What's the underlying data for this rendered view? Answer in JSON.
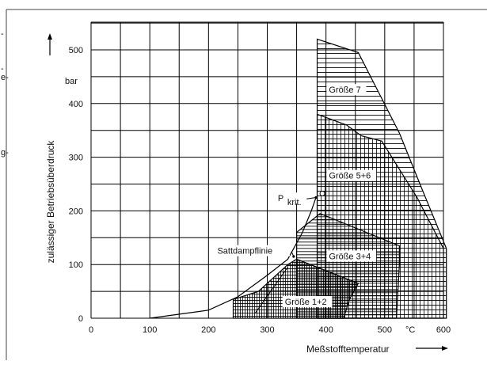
{
  "fragments": [
    "-",
    "-",
    "e-",
    "g-"
  ],
  "chart_data": {
    "type": "area",
    "xlabel": "Meßstofftemperatur",
    "ylabel": "zulässiger Betriebsüberdruck",
    "x_unit_label": "°C",
    "y_unit_label": "bar",
    "xlim": [
      0,
      610
    ],
    "ylim": [
      -10,
      540
    ],
    "x_ticks": [
      0,
      100,
      200,
      300,
      400,
      500,
      600
    ],
    "x_tick_labels": [
      "0",
      "100",
      "200",
      "300",
      "400",
      "500",
      "600"
    ],
    "y_ticks": [
      0,
      100,
      200,
      300,
      400,
      500
    ],
    "y_tick_labels": [
      "0",
      "100",
      "200",
      "300",
      "400",
      "500"
    ],
    "grid": true,
    "regions": [
      {
        "name": "Größe 1+2",
        "label_at": [
          330,
          25
        ],
        "polygon": [
          [
            242,
            0
          ],
          [
            242,
            35
          ],
          [
            285,
            50
          ],
          [
            335,
            100
          ],
          [
            350,
            110
          ],
          [
            455,
            65
          ],
          [
            440,
            35
          ],
          [
            430,
            0
          ]
        ]
      },
      {
        "name": "Größe 3+4",
        "label_at": [
          405,
          110
        ],
        "polygon": [
          [
            350,
            0
          ],
          [
            350,
            160
          ],
          [
            390,
            195
          ],
          [
            525,
            135
          ],
          [
            525,
            100
          ],
          [
            520,
            0
          ]
        ]
      },
      {
        "name": "Größe 5+6",
        "label_at": [
          405,
          260
        ],
        "polygon": [
          [
            385,
            0
          ],
          [
            385,
            380
          ],
          [
            435,
            360
          ],
          [
            460,
            340
          ],
          [
            495,
            330
          ],
          [
            555,
            225
          ],
          [
            600,
            130
          ],
          [
            600,
            0
          ]
        ]
      },
      {
        "name": "Größe 7",
        "label_at": [
          405,
          420
        ],
        "polygon": [
          [
            385,
            0
          ],
          [
            385,
            520
          ],
          [
            455,
            495
          ],
          [
            490,
            420
          ],
          [
            525,
            345
          ],
          [
            560,
            250
          ],
          [
            605,
            130
          ],
          [
            605,
            0
          ]
        ]
      }
    ],
    "annotations": [
      {
        "text": "Sattdampflinie",
        "at": [
          215,
          120
        ],
        "arrow_to": [
          345,
          115
        ]
      },
      {
        "text": "P",
        "sub": "krit.",
        "at": [
          318,
          218
        ],
        "arrow_to": [
          383,
          225
        ]
      },
      {
        "text": "",
        "at": [
          205,
          15
        ],
        "arrow_to": [
          335,
          95
        ]
      }
    ],
    "saturation_curve": [
      [
        100,
        0
      ],
      [
        200,
        15
      ],
      [
        250,
        40
      ],
      [
        300,
        80
      ],
      [
        335,
        110
      ],
      [
        360,
        160
      ],
      [
        375,
        200
      ],
      [
        383,
        225
      ]
    ]
  }
}
